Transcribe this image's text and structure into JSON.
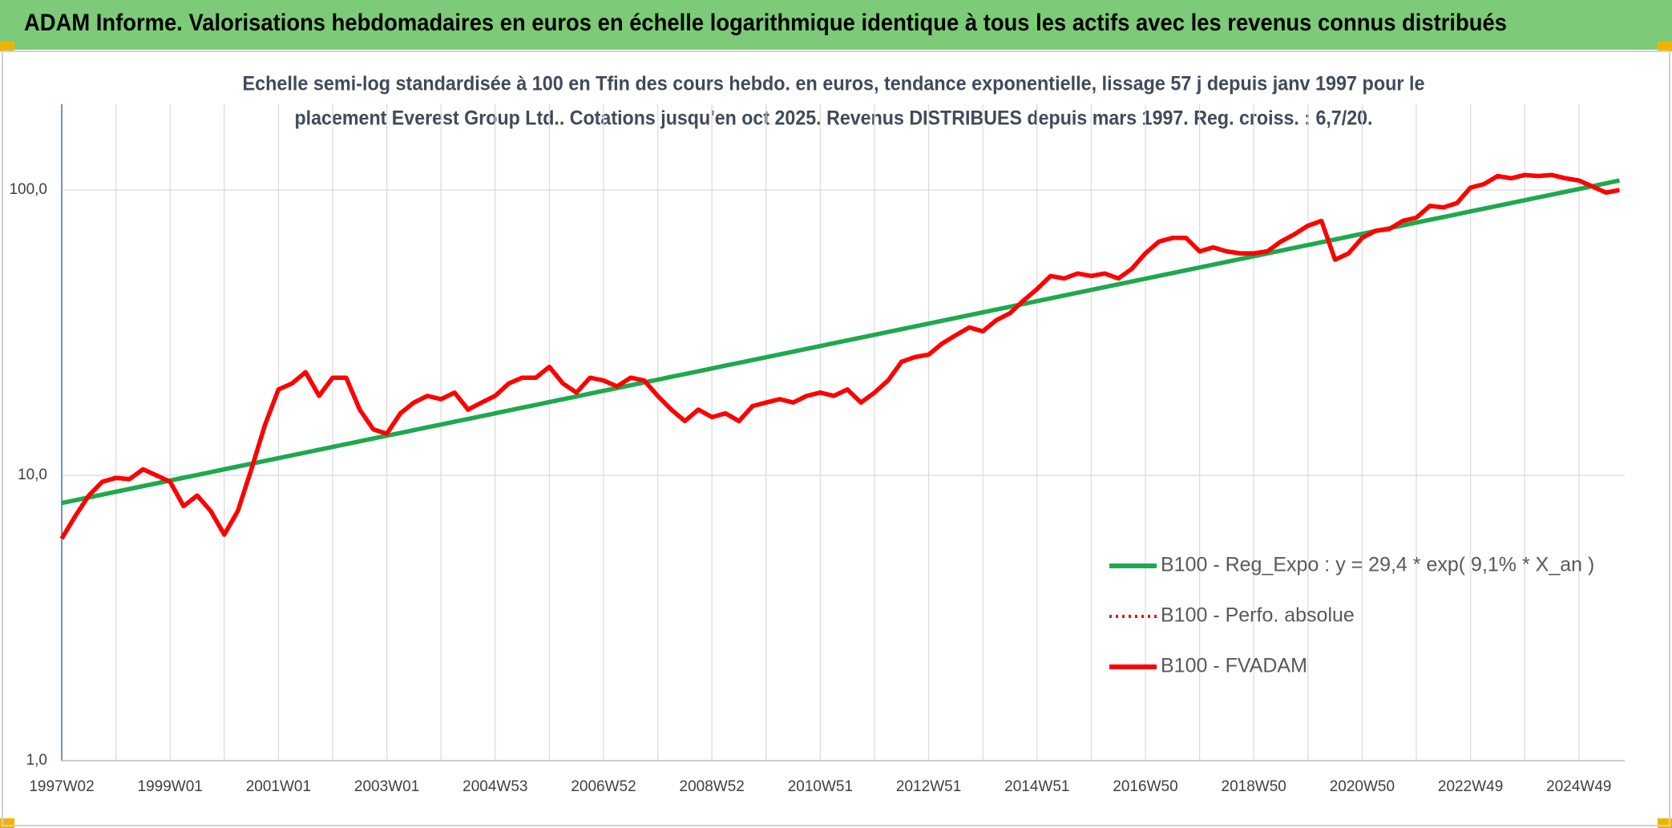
{
  "chart_data": {
    "type": "line",
    "title": "ADAM Informe. Valorisations hebdomadaires en euros en échelle logarithmique identique à tous les actifs avec les revenus connus distribués",
    "subtitle": [
      "Echelle semi-log standardisée à 100 en Tfin des cours hebdo. en euros, tendance exponentielle, lissage 57 j depuis janv 1997 pour le",
      "placement Everest Group Ltd.. Cotations jusqu'en oct 2025. Revenus DISTRIBUES depuis mars 1997. Reg. croiss. : 6,7/20."
    ],
    "log_scale": true,
    "grid": true,
    "legend": "right",
    "ylim": [
      1,
      200
    ],
    "yticks": [
      {
        "value": 1,
        "label": "1,0"
      },
      {
        "value": 10,
        "label": "10,0"
      },
      {
        "value": 100,
        "label": "100,0"
      }
    ],
    "categories": [
      "1997W02",
      null,
      null,
      null,
      null,
      null,
      null,
      null,
      "1999W01",
      null,
      null,
      null,
      null,
      null,
      null,
      null,
      "2001W01",
      null,
      null,
      null,
      null,
      null,
      null,
      null,
      "2003W01",
      null,
      null,
      null,
      null,
      null,
      null,
      null,
      "2004W53",
      null,
      null,
      null,
      null,
      null,
      null,
      null,
      "2006W52",
      null,
      null,
      null,
      null,
      null,
      null,
      null,
      "2008W52",
      null,
      null,
      null,
      null,
      null,
      null,
      null,
      "2010W51",
      null,
      null,
      null,
      null,
      null,
      null,
      null,
      "2012W51",
      null,
      null,
      null,
      null,
      null,
      null,
      null,
      "2014W51",
      null,
      null,
      null,
      null,
      null,
      null,
      null,
      "2016W50",
      null,
      null,
      null,
      null,
      null,
      null,
      null,
      "2018W50",
      null,
      null,
      null,
      null,
      null,
      null,
      null,
      "2020W50",
      null,
      null,
      null,
      null,
      null,
      null,
      null,
      "2022W49",
      null,
      null,
      null,
      null,
      null,
      null,
      null,
      "2024W49",
      null,
      null,
      null
    ],
    "series": [
      {
        "name": "B100 - Reg_Expo : y = 29,4 * exp( 9,1% *  X_an )",
        "color": "#1fa84f",
        "style": "solid",
        "values": [
          8.0,
          8.18,
          8.37,
          8.56,
          8.76,
          8.96,
          9.17,
          9.38,
          9.59,
          9.81,
          10.03,
          10.26,
          10.5,
          10.74,
          10.98,
          11.23,
          11.49,
          11.75,
          12.02,
          12.3,
          12.58,
          12.87,
          13.16,
          13.46,
          13.77,
          14.08,
          14.41,
          14.74,
          15.07,
          15.42,
          15.77,
          16.13,
          16.5,
          16.88,
          17.27,
          17.66,
          18.07,
          18.48,
          18.9,
          19.34,
          19.78,
          20.23,
          20.69,
          21.17,
          21.65,
          22.15,
          22.65,
          23.17,
          23.7,
          24.25,
          24.8,
          25.37,
          25.95,
          26.54,
          27.15,
          27.77,
          28.41,
          29.06,
          29.72,
          30.4,
          31.1,
          31.81,
          32.54,
          33.28,
          34.05,
          34.82,
          35.62,
          36.44,
          37.27,
          38.12,
          39.0,
          39.89,
          40.8,
          41.74,
          42.69,
          43.67,
          44.67,
          45.69,
          46.74,
          47.81,
          48.9,
          50.02,
          51.17,
          52.34,
          53.54,
          54.76,
          56.02,
          57.3,
          58.61,
          59.95,
          61.32,
          62.73,
          64.16,
          65.63,
          67.13,
          68.67,
          70.24,
          71.85,
          73.49,
          75.18,
          76.9,
          78.66,
          80.46,
          82.3,
          84.19,
          86.11,
          88.08,
          90.1,
          92.16,
          94.27,
          96.43,
          98.64,
          100.9,
          103.2,
          105.6,
          108.0
        ]
      },
      {
        "name": "B100 - Perfo. absolue",
        "color": "#ff0000",
        "style": "dotted",
        "values": [
          6.0,
          7.2,
          8.5,
          9.5,
          9.8,
          9.7,
          10.5,
          10.0,
          9.5,
          7.8,
          8.5,
          7.5,
          6.2,
          7.5,
          10.5,
          15,
          20,
          21,
          23,
          19,
          22,
          22,
          17,
          14.5,
          14,
          16.5,
          18,
          19,
          18.5,
          19.5,
          17,
          18,
          19,
          21,
          22,
          22,
          24,
          21,
          19.5,
          22,
          21.5,
          20.5,
          22,
          21.5,
          19,
          17,
          15.5,
          17,
          16,
          16.5,
          15.5,
          17.5,
          18,
          18.5,
          18,
          19,
          19.5,
          19,
          20,
          18,
          19.5,
          21.5,
          25,
          26,
          26.5,
          29,
          31,
          33,
          32,
          35,
          37,
          41,
          45,
          50,
          49,
          51,
          50,
          51,
          49,
          53,
          60,
          66,
          68,
          68,
          61,
          63,
          61,
          60,
          60,
          61,
          66,
          70,
          75,
          78,
          57,
          60,
          68,
          72,
          73,
          78,
          80,
          88,
          87,
          90,
          102,
          105,
          112,
          110,
          113,
          112,
          113,
          110,
          108,
          103,
          98,
          100
        ]
      },
      {
        "name": "B100 - FVADAM",
        "color": "#ff0000",
        "style": "solid",
        "values": [
          6.0,
          7.2,
          8.5,
          9.5,
          9.8,
          9.7,
          10.5,
          10.0,
          9.5,
          7.8,
          8.5,
          7.5,
          6.2,
          7.5,
          10.5,
          15,
          20,
          21,
          23,
          19,
          22,
          22,
          17,
          14.5,
          14,
          16.5,
          18,
          19,
          18.5,
          19.5,
          17,
          18,
          19,
          21,
          22,
          22,
          24,
          21,
          19.5,
          22,
          21.5,
          20.5,
          22,
          21.5,
          19,
          17,
          15.5,
          17,
          16,
          16.5,
          15.5,
          17.5,
          18,
          18.5,
          18,
          19,
          19.5,
          19,
          20,
          18,
          19.5,
          21.5,
          25,
          26,
          26.5,
          29,
          31,
          33,
          32,
          35,
          37,
          41,
          45,
          50,
          49,
          51,
          50,
          51,
          49,
          53,
          60,
          66,
          68,
          68,
          61,
          63,
          61,
          60,
          60,
          61,
          66,
          70,
          75,
          78,
          57,
          60,
          68,
          72,
          73,
          78,
          80,
          88,
          87,
          90,
          102,
          105,
          112,
          110,
          113,
          112,
          113,
          110,
          108,
          103,
          98,
          100
        ]
      }
    ]
  }
}
